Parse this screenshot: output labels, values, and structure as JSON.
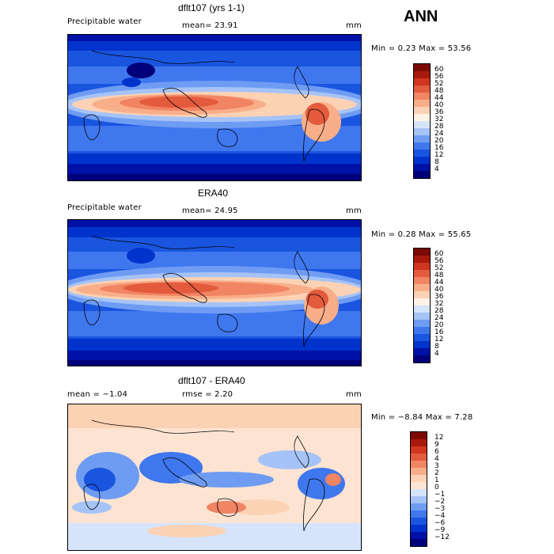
{
  "season_label": "ANN",
  "colors": {
    "abs_scale": [
      "#00007a",
      "#0011a8",
      "#0033cc",
      "#1a55e0",
      "#3f77ee",
      "#6f9cf3",
      "#a6c3f7",
      "#d6e4fb",
      "#fff3e6",
      "#fcd2b4",
      "#f9ae8a",
      "#f18463",
      "#e45a3d",
      "#cf3520",
      "#a8190c",
      "#7c0a04"
    ],
    "diff_scale": [
      "#00007a",
      "#0011a8",
      "#0033cc",
      "#1a55e0",
      "#3f77ee",
      "#6f9cf3",
      "#a6c3f7",
      "#d6e4fb",
      "#fde4d2",
      "#fcd2b4",
      "#f9ae8a",
      "#f18463",
      "#e45a3d",
      "#cf3520",
      "#a8190c",
      "#7c0a04"
    ]
  },
  "panels": [
    {
      "title": "dflt107 (yrs 1-1)",
      "left_label": "Precipitable water",
      "center_label": "mean=  23.91",
      "unit": "mm",
      "minmax": "Min =    0.23  Max =   53.56",
      "colorbar_labels": [
        "60",
        "56",
        "52",
        "48",
        "44",
        "40",
        "36",
        "32",
        "28",
        "24",
        "20",
        "16",
        "12",
        "8",
        "4"
      ]
    },
    {
      "title": "ERA40",
      "left_label": "Precipitable water",
      "center_label": "mean=  24.95",
      "unit": "mm",
      "minmax": "Min =    0.28  Max =   55.65",
      "colorbar_labels": [
        "60",
        "56",
        "52",
        "48",
        "44",
        "40",
        "36",
        "32",
        "28",
        "24",
        "20",
        "16",
        "12",
        "8",
        "4"
      ]
    },
    {
      "title": "dflt107 - ERA40",
      "left_label": "mean =   −1.04",
      "center_label": "rmse =    2.20",
      "unit": "mm",
      "minmax": "Min =  −8.84  Max =    7.28",
      "colorbar_labels": [
        "12",
        "9",
        "6",
        "4",
        "3",
        "2",
        "1",
        "0",
        "−1",
        "−2",
        "−3",
        "−4",
        "−6",
        "−9",
        "−12"
      ]
    }
  ]
}
